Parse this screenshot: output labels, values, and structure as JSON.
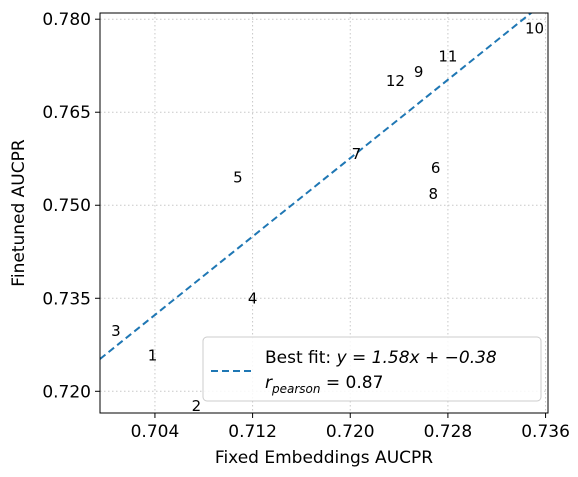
{
  "chart_data": {
    "type": "scatter",
    "title": "",
    "xlabel": "Fixed Embeddings AUCPR",
    "ylabel": "Finetuned AUCPR",
    "xlim": [
      0.6995,
      0.7362
    ],
    "ylim": [
      0.7165,
      0.781
    ],
    "xticks": [
      0.704,
      0.712,
      0.72,
      0.728,
      0.736
    ],
    "xtick_labels": [
      "0.704",
      "0.712",
      "0.720",
      "0.728",
      "0.736"
    ],
    "yticks": [
      0.72,
      0.735,
      0.75,
      0.765,
      0.78
    ],
    "ytick_labels": [
      "0.720",
      "0.735",
      "0.750",
      "0.765",
      "0.780"
    ],
    "grid": true,
    "points": [
      {
        "label": "1",
        "x": 0.7038,
        "y": 0.7258
      },
      {
        "label": "2",
        "x": 0.7074,
        "y": 0.7176
      },
      {
        "label": "3",
        "x": 0.7008,
        "y": 0.7297
      },
      {
        "label": "4",
        "x": 0.712,
        "y": 0.735
      },
      {
        "label": "5",
        "x": 0.7108,
        "y": 0.7545
      },
      {
        "label": "6",
        "x": 0.727,
        "y": 0.756
      },
      {
        "label": "7",
        "x": 0.7205,
        "y": 0.7583
      },
      {
        "label": "8",
        "x": 0.7268,
        "y": 0.7518
      },
      {
        "label": "9",
        "x": 0.7256,
        "y": 0.7715
      },
      {
        "label": "10",
        "x": 0.7351,
        "y": 0.7785
      },
      {
        "label": "11",
        "x": 0.728,
        "y": 0.774
      },
      {
        "label": "12",
        "x": 0.7237,
        "y": 0.77
      }
    ],
    "fit_line": {
      "slope": 1.58,
      "intercept": -0.38,
      "color": "#1f77b4",
      "style": "dashed"
    },
    "legend": {
      "placement": "lower-right",
      "line1_prefix": "Best fit: ",
      "line1_eq": "y = 1.58x + −0.38",
      "line2_r": "r",
      "line2_sub": "pearson",
      "line2_val": " = 0.87"
    }
  }
}
